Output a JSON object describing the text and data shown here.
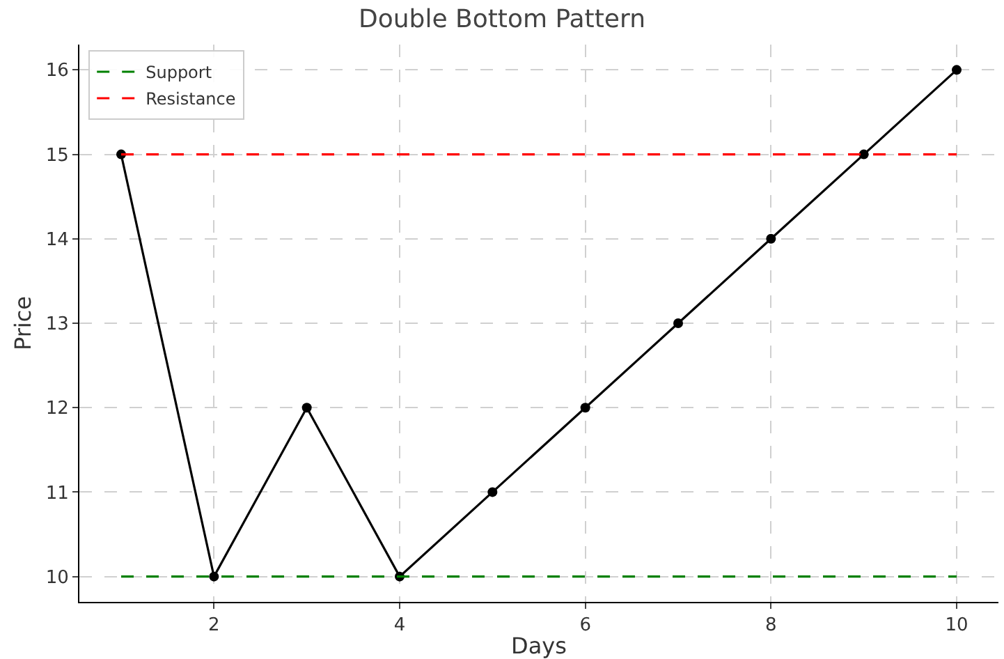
{
  "chart_data": {
    "type": "line",
    "title": "Double Bottom Pattern",
    "xlabel": "Days",
    "ylabel": "Price",
    "x": [
      1,
      2,
      3,
      4,
      5,
      6,
      7,
      8,
      9,
      10
    ],
    "series": [
      {
        "color": "#000000",
        "marker": "circle",
        "line_style": "solid",
        "values": [
          15,
          10,
          12,
          10,
          11,
          12,
          13,
          14,
          15,
          16
        ]
      },
      {
        "name": "Support",
        "color": "#008000",
        "marker": "none",
        "line_style": "dashed",
        "values": [
          10,
          10,
          10,
          10,
          10,
          10,
          10,
          10,
          10,
          10
        ]
      },
      {
        "name": "Resistance",
        "color": "#ff0000",
        "marker": "none",
        "line_style": "dashed",
        "values": [
          15,
          15,
          15,
          15,
          15,
          15,
          15,
          15,
          15,
          15
        ]
      }
    ],
    "xlim": [
      0.55,
      10.45
    ],
    "ylim": [
      9.7,
      16.3
    ],
    "xticks": [
      2,
      4,
      6,
      8,
      10
    ],
    "yticks": [
      10,
      11,
      12,
      13,
      14,
      15,
      16
    ],
    "grid": true,
    "legend": "top left"
  }
}
